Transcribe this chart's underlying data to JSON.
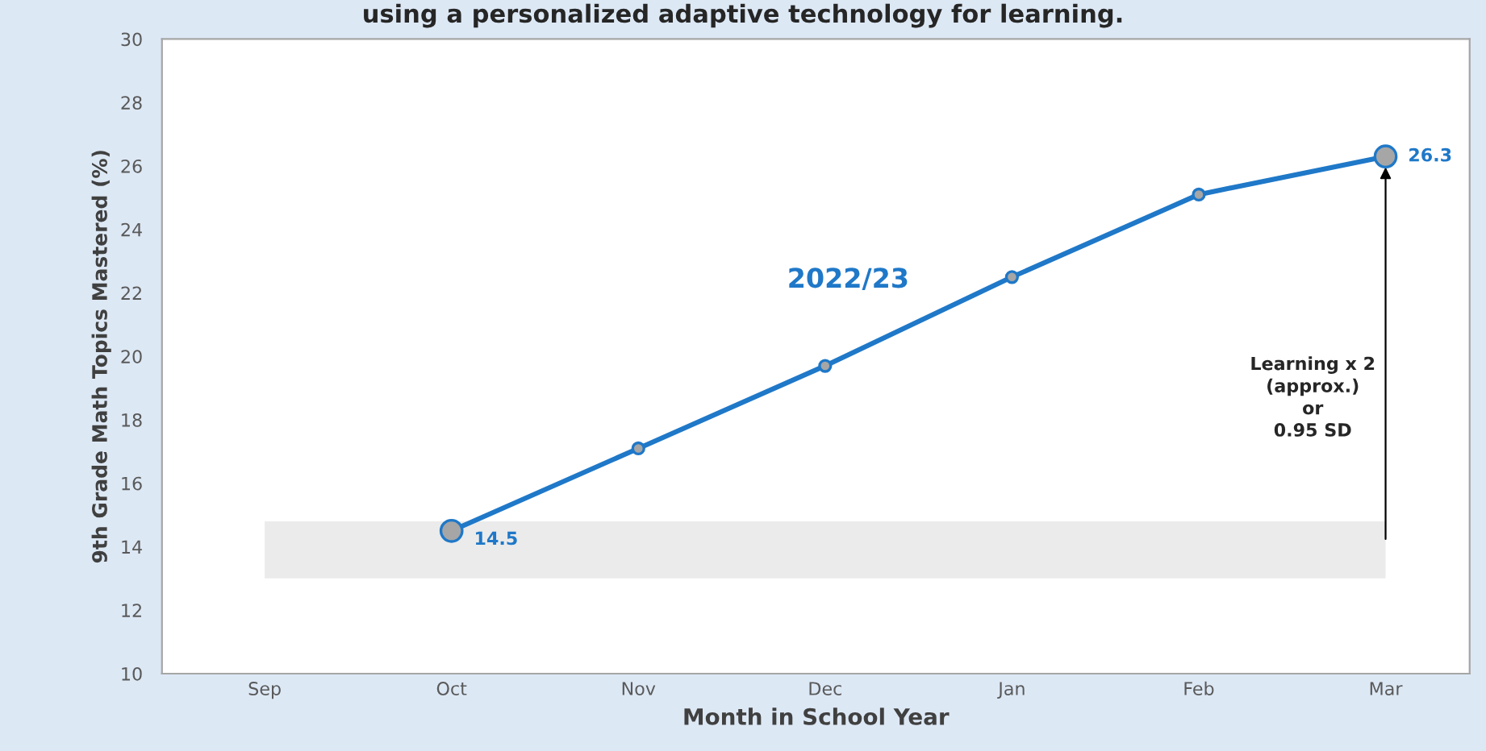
{
  "chart_data": {
    "type": "line",
    "title": "using a personalized adaptive technology for learning.",
    "xlabel": "Month in School Year",
    "ylabel": "9th Grade Math Topics Mastered (%)",
    "categories": [
      "Sep",
      "Oct",
      "Nov",
      "Dec",
      "Jan",
      "Feb",
      "Mar"
    ],
    "series": [
      {
        "name": "2022/23",
        "color": "#1f78c8",
        "values": [
          null,
          14.5,
          17.1,
          19.7,
          22.5,
          25.1,
          26.3
        ],
        "value_labels": [
          null,
          "14.5",
          null,
          null,
          null,
          null,
          "26.3"
        ]
      }
    ],
    "ylim": [
      10,
      30
    ],
    "yticks": [
      10,
      12,
      14,
      16,
      18,
      20,
      22,
      24,
      26,
      28,
      30
    ],
    "bands": [
      {
        "axis": "y",
        "from": 13,
        "to": 14.8,
        "color": "#ebebeb"
      }
    ],
    "annotations": [
      "Learning x 2\n(approx.)\nor\n0.95 SD"
    ],
    "marker": "circle",
    "line_style": "solid",
    "grid": false,
    "legend": false
  }
}
